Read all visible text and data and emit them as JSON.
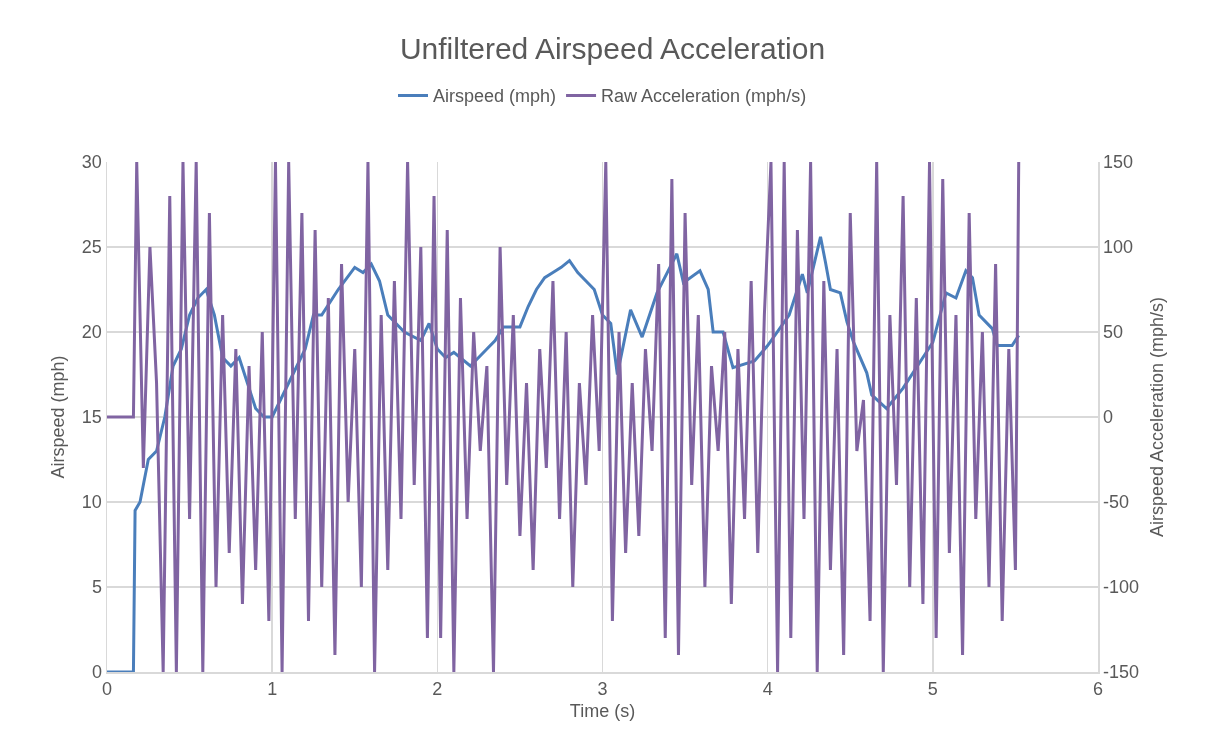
{
  "chart_data": {
    "type": "line",
    "title": "Unfiltered Airspeed Acceleration",
    "xlabel": "Time (s)",
    "ylabel": "Airspeed (mph)",
    "y2label": "Airspeed Acceleration (mph/s)",
    "xlim": [
      0,
      6
    ],
    "xticks": [
      0,
      1,
      2,
      3,
      4,
      5,
      6
    ],
    "ylim": [
      0,
      30
    ],
    "yticks": [
      0,
      5,
      10,
      15,
      20,
      25,
      30
    ],
    "y2lim": [
      -150,
      150
    ],
    "y2ticks": [
      -150,
      -100,
      -50,
      0,
      50,
      100,
      150
    ],
    "grid": true,
    "legend": "top",
    "marker": "none",
    "line_style": "solid",
    "series": [
      {
        "name": "Airspeed (mph)",
        "color": "#4a7ebb",
        "x": [
          0,
          0.16,
          0.17,
          0.2,
          0.25,
          0.3,
          0.35,
          0.4,
          0.45,
          0.5,
          0.55,
          0.6,
          0.65,
          0.7,
          0.75,
          0.8,
          0.85,
          0.9,
          0.95,
          1.0,
          1.1,
          1.2,
          1.25,
          1.3,
          1.4,
          1.5,
          1.55,
          1.6,
          1.65,
          1.7,
          1.75,
          1.8,
          1.9,
          1.95,
          2.0,
          2.05,
          2.1,
          2.2,
          2.3,
          2.35,
          2.4,
          2.5,
          2.55,
          2.6,
          2.65,
          2.7,
          2.75,
          2.8,
          2.85,
          2.9,
          2.95,
          3.0,
          3.05,
          3.09,
          3.17,
          3.24,
          3.33,
          3.45,
          3.49,
          3.59,
          3.64,
          3.67,
          3.73,
          3.79,
          3.92,
          4.0,
          4.13,
          4.21,
          4.24,
          4.32,
          4.35,
          4.38,
          4.44,
          4.48,
          4.52,
          4.6,
          4.63,
          4.72,
          4.82,
          5.0,
          5.08,
          5.14,
          5.2,
          5.24,
          5.28,
          5.36,
          5.39,
          5.48,
          5.52
        ],
        "values": [
          0,
          0,
          9.5,
          10,
          12.5,
          13,
          15,
          18,
          19,
          21,
          22,
          22.5,
          21,
          18.5,
          18,
          18.5,
          17,
          15.5,
          15,
          15,
          17,
          19,
          21,
          21,
          22.5,
          23.8,
          23.5,
          24,
          23,
          21,
          20.5,
          20,
          19.5,
          20.5,
          19,
          18.5,
          18.8,
          18,
          19,
          19.5,
          20.3,
          20.3,
          21.5,
          22.5,
          23.2,
          23.5,
          23.8,
          24.2,
          23.5,
          23,
          22.5,
          21,
          20.5,
          17.5,
          21.3,
          19.7,
          22.3,
          24.6,
          22.9,
          23.6,
          22.5,
          20,
          20,
          17.9,
          18.3,
          19.2,
          21,
          23.4,
          22.3,
          25.6,
          24.1,
          22.5,
          22.3,
          20.6,
          19.4,
          17.6,
          16.3,
          15.5,
          16.7,
          19.4,
          22.3,
          22,
          23.6,
          23.2,
          21,
          20.2,
          19.2,
          19.2,
          19.8
        ]
      },
      {
        "name": "Raw Acceleration (mph/s)",
        "color": "#8064a2",
        "axis": "y2",
        "x": [
          0,
          0.16,
          0.18,
          0.22,
          0.26,
          0.3,
          0.34,
          0.38,
          0.42,
          0.46,
          0.5,
          0.54,
          0.58,
          0.62,
          0.66,
          0.7,
          0.74,
          0.78,
          0.82,
          0.86,
          0.9,
          0.94,
          0.98,
          1.02,
          1.06,
          1.1,
          1.14,
          1.18,
          1.22,
          1.26,
          1.3,
          1.34,
          1.38,
          1.42,
          1.46,
          1.5,
          1.54,
          1.58,
          1.62,
          1.66,
          1.7,
          1.74,
          1.78,
          1.82,
          1.86,
          1.9,
          1.94,
          1.98,
          2.02,
          2.06,
          2.1,
          2.14,
          2.18,
          2.22,
          2.26,
          2.3,
          2.34,
          2.38,
          2.42,
          2.46,
          2.5,
          2.54,
          2.58,
          2.62,
          2.66,
          2.7,
          2.74,
          2.78,
          2.82,
          2.86,
          2.9,
          2.94,
          2.98,
          3.02,
          3.06,
          3.1,
          3.14,
          3.18,
          3.22,
          3.26,
          3.3,
          3.34,
          3.38,
          3.42,
          3.46,
          3.5,
          3.54,
          3.58,
          3.62,
          3.66,
          3.7,
          3.74,
          3.78,
          3.82,
          3.86,
          3.9,
          3.94,
          3.98,
          4.02,
          4.06,
          4.1,
          4.14,
          4.18,
          4.22,
          4.26,
          4.3,
          4.34,
          4.38,
          4.42,
          4.46,
          4.5,
          4.54,
          4.58,
          4.62,
          4.66,
          4.7,
          4.74,
          4.78,
          4.82,
          4.86,
          4.9,
          4.94,
          4.98,
          5.02,
          5.06,
          5.1,
          5.14,
          5.18,
          5.22,
          5.26,
          5.3,
          5.34,
          5.38,
          5.42,
          5.46,
          5.5,
          5.52
        ],
        "values": [
          0,
          0,
          150,
          -30,
          100,
          20,
          -150,
          130,
          -150,
          150,
          -60,
          150,
          -150,
          120,
          -100,
          60,
          -80,
          40,
          -110,
          30,
          -90,
          50,
          -120,
          150,
          -150,
          150,
          -60,
          120,
          -120,
          110,
          -100,
          70,
          -140,
          90,
          -50,
          40,
          -100,
          150,
          -150,
          60,
          -90,
          80,
          -60,
          150,
          -40,
          100,
          -130,
          130,
          -130,
          110,
          -150,
          70,
          -60,
          50,
          -20,
          30,
          -150,
          100,
          -40,
          60,
          -70,
          20,
          -90,
          40,
          -30,
          80,
          -60,
          50,
          -100,
          20,
          -40,
          60,
          -20,
          150,
          -120,
          50,
          -80,
          20,
          -70,
          40,
          -20,
          90,
          -130,
          140,
          -140,
          120,
          -40,
          60,
          -100,
          30,
          -20,
          50,
          -110,
          40,
          -60,
          80,
          -80,
          60,
          150,
          -150,
          150,
          -130,
          110,
          -60,
          150,
          -150,
          80,
          -90,
          40,
          -140,
          120,
          -20,
          10,
          -120,
          150,
          -150,
          60,
          -40,
          130,
          -100,
          70,
          -110,
          150,
          -130,
          140,
          -80,
          60,
          -140,
          120,
          -60,
          50,
          -100,
          90,
          -120,
          40,
          -90,
          150
        ]
      }
    ]
  }
}
